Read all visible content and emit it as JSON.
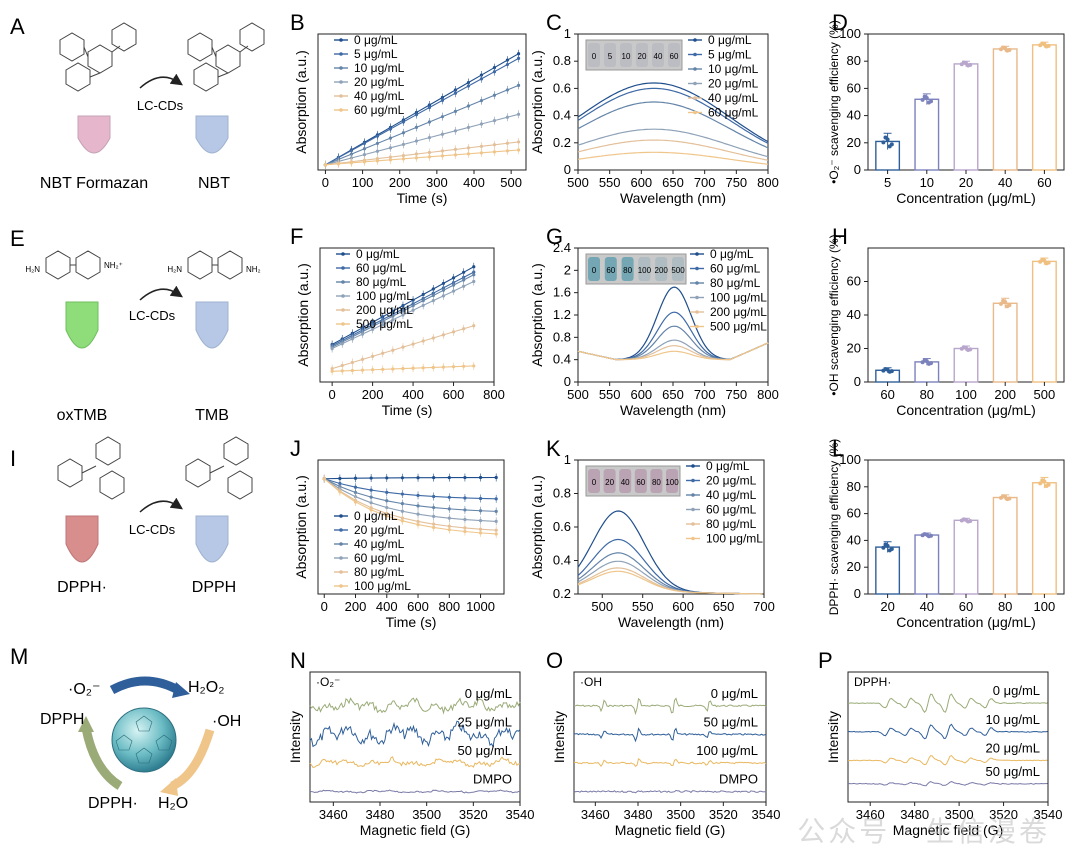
{
  "colors": {
    "c0": "#1f4e8c",
    "c1": "#3e6aa6",
    "c2": "#6484a8",
    "c3": "#8fa2b8",
    "c4": "#e3c09a",
    "c5": "#efc58a",
    "bar1": "#2f5f9a",
    "bar2": "#7b82bc",
    "bar3": "#b9a6cc",
    "bar4": "#e9b98a",
    "bar5": "#f0c080",
    "nbt_tube": "#e6b7cc",
    "tmb_tube": "#8fdc7a",
    "dpph_tube": "#d98e8e",
    "blue_tube": "#b7c8e6",
    "esr_green": "#9aab78",
    "esr_blue": "#2f5f9a",
    "esr_orange": "#e9b860",
    "esr_purple": "#7a7aa8"
  },
  "schemes": {
    "A": {
      "panel": "A",
      "reagent_left": "NBT Formazan",
      "reagent_right": "NBT",
      "arrow_label": "LC-CDs"
    },
    "E": {
      "panel": "E",
      "reagent_left": "oxTMB",
      "reagent_right": "TMB",
      "arrow_label": "LC-CDs"
    },
    "I": {
      "panel": "I",
      "reagent_left": "DPPH·",
      "reagent_right": "DPPH",
      "arrow_label": "LC-CDs"
    },
    "M": {
      "panel": "M",
      "o2": "·O₂⁻",
      "h2o2": "H₂O₂",
      "oh": "·OH",
      "h2o": "H₂O",
      "dpph": "DPPH",
      "dpph_rad": "DPPH·"
    }
  },
  "chart_data": [
    {
      "id": "B",
      "panel": "B",
      "type": "line",
      "xlabel": "Time (s)",
      "ylabel": "Absorption (a.u.)",
      "xlim": [
        -20,
        540
      ],
      "ylim": [
        0,
        1.05
      ],
      "xticks": [
        0,
        100,
        200,
        300,
        400,
        500
      ],
      "yticks": [],
      "legend": [
        "0 μg/mL",
        "5 μg/mL",
        "10 μg/mL",
        "20 μg/mL",
        "40 μg/mL",
        "60 μg/mL"
      ],
      "x": [
        0,
        35,
        70,
        105,
        140,
        175,
        210,
        245,
        280,
        315,
        350,
        385,
        420,
        455,
        490,
        520
      ],
      "slopes": [
        0.00165,
        0.00158,
        0.00118,
        0.00075,
        0.00034,
        0.00022
      ],
      "intercept": 0.04
    },
    {
      "id": "C",
      "panel": "C",
      "type": "line",
      "xlabel": "Wavelength (nm)",
      "ylabel": "Absorption (a.u.)",
      "xlim": [
        500,
        800
      ],
      "ylim": [
        0,
        1.0
      ],
      "xticks": [
        500,
        550,
        600,
        650,
        700,
        750,
        800
      ],
      "yticks": [
        0,
        0.2,
        0.4,
        0.6,
        0.8,
        1.0
      ],
      "legend": [
        "0 μg/mL",
        "5 μg/mL",
        "10 μg/mL",
        "20 μg/mL",
        "40 μg/mL",
        "60 μg/mL"
      ],
      "inset_labels": [
        "0",
        "5",
        "10",
        "20",
        "40",
        "60"
      ],
      "peak": [
        0.64,
        0.6,
        0.5,
        0.3,
        0.22,
        0.13
      ],
      "center": 620,
      "width": 170,
      "tail": 0.35
    },
    {
      "id": "D",
      "panel": "D",
      "type": "bar",
      "xlabel": "Concentration (μg/mL)",
      "ylabel": "•O₂⁻ scavenging efficiency (%)",
      "ylim": [
        0,
        100
      ],
      "yticks": [
        0,
        20,
        40,
        60,
        80,
        100
      ],
      "categories": [
        "5",
        "10",
        "20",
        "40",
        "60"
      ],
      "values": [
        21,
        52,
        78,
        89,
        92
      ],
      "errors": [
        6,
        4,
        2,
        2,
        2
      ]
    },
    {
      "id": "F",
      "panel": "F",
      "type": "line",
      "xlabel": "Time (s)",
      "ylabel": "Absorption (a.u.)",
      "xlim": [
        -60,
        800
      ],
      "ylim": [
        0,
        1.0
      ],
      "xticks": [
        0,
        200,
        400,
        600,
        800
      ],
      "yticks": [],
      "legend": [
        "0 μg/mL",
        "60 μg/mL",
        "80 μg/mL",
        "100 μg/mL",
        "200 μg/mL",
        "500 μg/mL"
      ],
      "x": [
        0,
        50,
        100,
        150,
        200,
        250,
        300,
        350,
        400,
        450,
        500,
        550,
        600,
        650,
        700
      ],
      "starts": [
        0.28,
        0.27,
        0.26,
        0.25,
        0.1,
        0.08
      ],
      "ends": [
        0.86,
        0.82,
        0.8,
        0.75,
        0.42,
        0.12
      ]
    },
    {
      "id": "G",
      "panel": "G",
      "type": "line",
      "xlabel": "Wavelength (nm)",
      "ylabel": "Absorption (a.u.)",
      "xlim": [
        500,
        800
      ],
      "ylim": [
        0,
        2.4
      ],
      "xticks": [
        500,
        550,
        600,
        650,
        700,
        750,
        800
      ],
      "yticks": [
        0,
        0.4,
        0.8,
        1.2,
        1.6,
        2.0,
        2.4
      ],
      "legend": [
        "0 μg/mL",
        "60 μg/mL",
        "80 μg/mL",
        "100 μg/mL",
        "200 μg/mL",
        "500 μg/mL"
      ],
      "inset_labels": [
        "0",
        "60",
        "80",
        "100",
        "200",
        "500"
      ],
      "peak": [
        1.7,
        1.25,
        1.0,
        0.75,
        0.65,
        0.55
      ],
      "center": 652,
      "width": 38,
      "base": 0.4
    },
    {
      "id": "H",
      "panel": "H",
      "type": "bar",
      "xlabel": "Concentration (μg/mL)",
      "ylabel": "•OH scavenging efficiency (%)",
      "ylim": [
        0,
        80
      ],
      "yticks": [
        0,
        20,
        40,
        60
      ],
      "categories": [
        "60",
        "80",
        "100",
        "200",
        "500"
      ],
      "values": [
        7,
        12,
        20,
        47,
        72
      ],
      "errors": [
        1.5,
        2,
        1.5,
        3,
        2
      ]
    },
    {
      "id": "J",
      "panel": "J",
      "type": "line",
      "xlabel": "Time (s)",
      "ylabel": "Absorption (a.u.)",
      "xlim": [
        -40,
        1150
      ],
      "ylim": [
        0,
        1.0
      ],
      "xticks": [
        0,
        200,
        400,
        600,
        800,
        1000
      ],
      "yticks": [],
      "legend": [
        "0 μg/mL",
        "20 μg/mL",
        "40 μg/mL",
        "60 μg/mL",
        "80 μg/mL",
        "100 μg/mL"
      ],
      "x": [
        0,
        100,
        200,
        300,
        400,
        500,
        600,
        700,
        800,
        900,
        1000,
        1100
      ],
      "starts": [
        0.86,
        0.86,
        0.86,
        0.86,
        0.86,
        0.86
      ],
      "ends": [
        0.87,
        0.7,
        0.6,
        0.52,
        0.45,
        0.42
      ]
    },
    {
      "id": "K",
      "panel": "K",
      "type": "line",
      "xlabel": "Wavelength (nm)",
      "ylabel": "Absorption (a.u.)",
      "xlim": [
        470,
        700
      ],
      "ylim": [
        0.2,
        1.0
      ],
      "xticks": [
        500,
        550,
        600,
        650,
        700
      ],
      "yticks": [
        0.2,
        0.4,
        0.6,
        0.8,
        1.0
      ],
      "legend": [
        "0 μg/mL",
        "20 μg/mL",
        "40 μg/mL",
        "60 μg/mL",
        "80 μg/mL",
        "100 μg/mL"
      ],
      "inset_labels": [
        "0",
        "20",
        "40",
        "60",
        "80",
        "100"
      ],
      "peak": [
        0.7,
        0.53,
        0.45,
        0.4,
        0.36,
        0.34
      ],
      "center": 520,
      "width": 45,
      "base": 0.22
    },
    {
      "id": "L",
      "panel": "L",
      "type": "bar",
      "xlabel": "Concentration (μg/mL)",
      "ylabel": "DPPH· scavenging efficiency (%)",
      "ylim": [
        0,
        100
      ],
      "yticks": [
        0,
        20,
        40,
        60,
        80,
        100
      ],
      "categories": [
        "20",
        "40",
        "60",
        "80",
        "100"
      ],
      "values": [
        35,
        44,
        55,
        72,
        83
      ],
      "errors": [
        4,
        1.5,
        1.5,
        2,
        4
      ]
    },
    {
      "id": "N",
      "panel": "N",
      "type": "line",
      "xlabel": "Magnetic field (G)",
      "ylabel": "Intensity",
      "xlim": [
        3450,
        3540
      ],
      "xticks": [
        3460,
        3480,
        3500,
        3520,
        3540
      ],
      "yticks": [],
      "corner_label": "·O₂⁻",
      "legend": [
        "0 μg/mL",
        "25 μg/mL",
        "50 μg/mL",
        "DMPO"
      ]
    },
    {
      "id": "O",
      "panel": "O",
      "type": "line",
      "xlabel": "Magnetic field (G)",
      "ylabel": "Intensity",
      "xlim": [
        3450,
        3540
      ],
      "xticks": [
        3460,
        3480,
        3500,
        3520,
        3540
      ],
      "yticks": [],
      "corner_label": "·OH",
      "legend": [
        "0 μg/mL",
        "50 μg/mL",
        "100 μg/mL",
        "DMPO"
      ]
    },
    {
      "id": "P",
      "panel": "P",
      "type": "line",
      "xlabel": "Magnetic field (G)",
      "ylabel": "Intensity",
      "xlim": [
        3450,
        3540
      ],
      "xticks": [
        3460,
        3480,
        3500,
        3520,
        3540
      ],
      "yticks": [],
      "corner_label": "DPPH·",
      "legend": [
        "0 μg/mL",
        "10 μg/mL",
        "20 μg/mL",
        "50 μg/mL"
      ]
    }
  ],
  "watermark": "公众号 · 生信漫卷"
}
